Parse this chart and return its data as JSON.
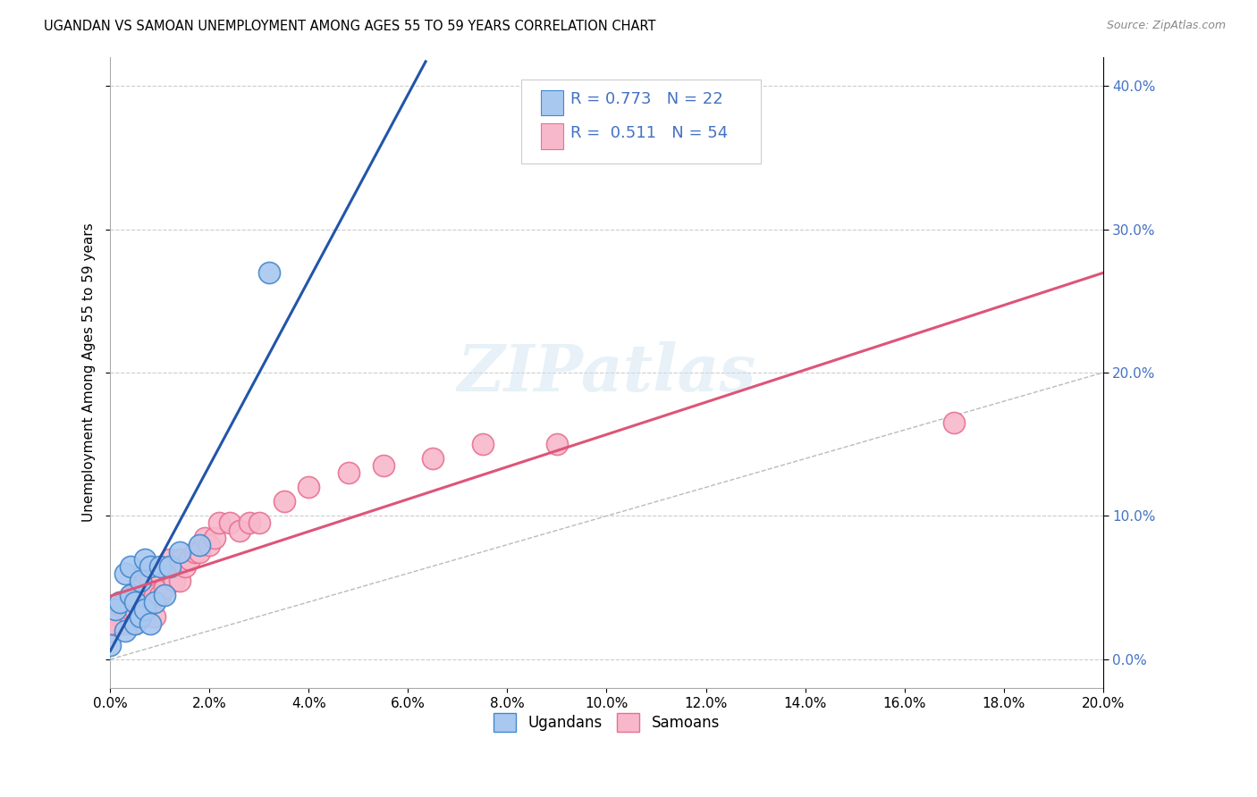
{
  "title": "UGANDAN VS SAMOAN UNEMPLOYMENT AMONG AGES 55 TO 59 YEARS CORRELATION CHART",
  "source": "Source: ZipAtlas.com",
  "ylabel_label": "Unemployment Among Ages 55 to 59 years",
  "xlim": [
    0.0,
    0.2
  ],
  "ylim": [
    -0.02,
    0.42
  ],
  "xticks": [
    0.0,
    0.02,
    0.04,
    0.06,
    0.08,
    0.1,
    0.12,
    0.14,
    0.16,
    0.18,
    0.2
  ],
  "yticks": [
    0.0,
    0.1,
    0.2,
    0.3,
    0.4
  ],
  "background_color": "#ffffff",
  "grid_color": "#cccccc",
  "ugandan_color": "#a8c8f0",
  "ugandan_edge_color": "#4488cc",
  "samoan_color": "#f8b8cc",
  "samoan_edge_color": "#e87090",
  "ugandan_R": 0.773,
  "ugandan_N": 22,
  "samoan_R": 0.511,
  "samoan_N": 54,
  "legend_color": "#4472c4",
  "ugandan_line_color": "#2255aa",
  "samoan_line_color": "#dd5577",
  "diagonal_line_color": "#bbbbbb",
  "ugandan_x": [
    0.0,
    0.001,
    0.002,
    0.003,
    0.003,
    0.004,
    0.004,
    0.005,
    0.005,
    0.006,
    0.006,
    0.007,
    0.007,
    0.008,
    0.008,
    0.009,
    0.01,
    0.011,
    0.012,
    0.014,
    0.018,
    0.032
  ],
  "ugandan_y": [
    0.01,
    0.035,
    0.04,
    0.06,
    0.02,
    0.065,
    0.045,
    0.04,
    0.025,
    0.055,
    0.03,
    0.07,
    0.035,
    0.065,
    0.025,
    0.04,
    0.065,
    0.045,
    0.065,
    0.075,
    0.08,
    0.27
  ],
  "samoan_x": [
    0.0,
    0.001,
    0.001,
    0.002,
    0.002,
    0.003,
    0.003,
    0.003,
    0.004,
    0.004,
    0.004,
    0.005,
    0.005,
    0.005,
    0.006,
    0.006,
    0.007,
    0.007,
    0.007,
    0.008,
    0.008,
    0.009,
    0.009,
    0.01,
    0.01,
    0.011,
    0.011,
    0.012,
    0.012,
    0.013,
    0.013,
    0.014,
    0.014,
    0.015,
    0.016,
    0.017,
    0.018,
    0.019,
    0.02,
    0.021,
    0.022,
    0.024,
    0.026,
    0.028,
    0.03,
    0.035,
    0.04,
    0.048,
    0.055,
    0.065,
    0.075,
    0.09,
    0.17,
    0.0
  ],
  "samoan_y": [
    0.02,
    0.03,
    0.025,
    0.03,
    0.04,
    0.025,
    0.035,
    0.04,
    0.025,
    0.035,
    0.045,
    0.025,
    0.035,
    0.045,
    0.04,
    0.055,
    0.03,
    0.045,
    0.06,
    0.04,
    0.055,
    0.03,
    0.045,
    0.045,
    0.06,
    0.05,
    0.065,
    0.06,
    0.07,
    0.055,
    0.065,
    0.055,
    0.07,
    0.065,
    0.07,
    0.075,
    0.075,
    0.085,
    0.08,
    0.085,
    0.095,
    0.095,
    0.09,
    0.095,
    0.095,
    0.11,
    0.12,
    0.13,
    0.135,
    0.14,
    0.15,
    0.15,
    0.165,
    0.025
  ]
}
